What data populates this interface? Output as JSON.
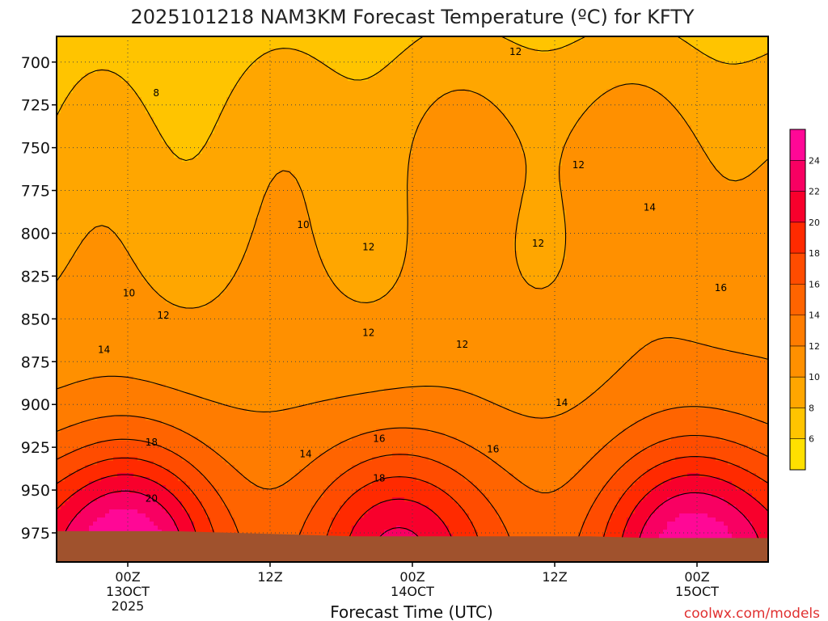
{
  "chart_data": {
    "type": "contour",
    "title": "2025101218 NAM3KM Forecast Temperature (ºC) for KFTY",
    "xlabel": "Forecast Time (UTC)",
    "ylabel": "",
    "watermark": "coolwx.com/models",
    "x_ticks": [
      {
        "hours": 6,
        "line1": "00Z",
        "line2": "13OCT",
        "line3": "2025"
      },
      {
        "hours": 18,
        "line1": "12Z",
        "line2": "",
        "line3": ""
      },
      {
        "hours": 30,
        "line1": "00Z",
        "line2": "14OCT",
        "line3": ""
      },
      {
        "hours": 42,
        "line1": "12Z",
        "line2": "",
        "line3": ""
      },
      {
        "hours": 54,
        "line1": "00Z",
        "line2": "15OCT",
        "line3": ""
      }
    ],
    "xlim_hours": [
      0,
      60
    ],
    "y_ticks": [
      "700",
      "725",
      "750",
      "775",
      "800",
      "825",
      "850",
      "875",
      "900",
      "925",
      "950",
      "975"
    ],
    "ylim_hpa": [
      685,
      992
    ],
    "surface_pressure_hpa": [
      974,
      974,
      974,
      975,
      976,
      977,
      977,
      977,
      977,
      977,
      978,
      978,
      978
    ],
    "colorbar": {
      "levels": [
        4,
        6,
        8,
        10,
        12,
        14,
        16,
        18,
        20,
        22,
        24,
        26
      ],
      "labels": [
        "6",
        "8",
        "10",
        "12",
        "14",
        "16",
        "18",
        "20",
        "22",
        "24"
      ],
      "colors": [
        "#ffe000",
        "#ffc400",
        "#ffa600",
        "#ff9000",
        "#ff7c00",
        "#ff6400",
        "#ff4c00",
        "#ff2a00",
        "#f8002c",
        "#f80062",
        "#ff0896"
      ]
    },
    "grid": true,
    "contour_labels": [
      {
        "text": "8",
        "hours": 8.4,
        "hpa": 718
      },
      {
        "text": "10",
        "hours": 20.8,
        "hpa": 795
      },
      {
        "text": "10",
        "hours": 6.1,
        "hpa": 835
      },
      {
        "text": "12",
        "hours": 38.7,
        "hpa": 694
      },
      {
        "text": "12",
        "hours": 44.0,
        "hpa": 760
      },
      {
        "text": "12",
        "hours": 26.3,
        "hpa": 808
      },
      {
        "text": "12",
        "hours": 40.6,
        "hpa": 806
      },
      {
        "text": "12",
        "hours": 9.0,
        "hpa": 848
      },
      {
        "text": "12",
        "hours": 26.3,
        "hpa": 858
      },
      {
        "text": "12",
        "hours": 34.2,
        "hpa": 865
      },
      {
        "text": "14",
        "hours": 4.0,
        "hpa": 868
      },
      {
        "text": "14",
        "hours": 21.0,
        "hpa": 929
      },
      {
        "text": "14",
        "hours": 42.6,
        "hpa": 899
      },
      {
        "text": "14",
        "hours": 50.0,
        "hpa": 785
      },
      {
        "text": "16",
        "hours": 27.2,
        "hpa": 920
      },
      {
        "text": "16",
        "hours": 36.8,
        "hpa": 926
      },
      {
        "text": "16",
        "hours": 56.0,
        "hpa": 832
      },
      {
        "text": "18",
        "hours": 8.0,
        "hpa": 922
      },
      {
        "text": "18",
        "hours": 27.2,
        "hpa": 943
      },
      {
        "text": "20",
        "hours": 8.0,
        "hpa": 955
      }
    ]
  }
}
